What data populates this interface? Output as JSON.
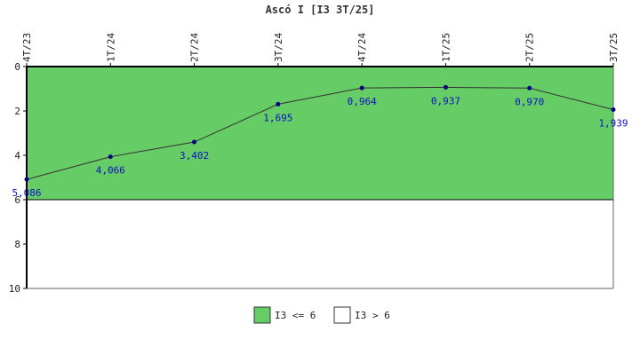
{
  "chart_data": {
    "type": "line",
    "title": "Ascó I [I3 3T/25]",
    "categories": [
      "4T/23",
      "1T/24",
      "2T/24",
      "3T/24",
      "4T/24",
      "1T/25",
      "2T/25",
      "3T/25"
    ],
    "series": [
      {
        "values": [
          5.086,
          4.066,
          3.402,
          1.695,
          0.964,
          0.937,
          0.97,
          1.939
        ],
        "labels": [
          "5,086",
          "4,066",
          "3,402",
          "1,695",
          "0,964",
          "0,937",
          "0,970",
          "1,939"
        ],
        "color": "#000080",
        "line_color": "#333333"
      }
    ],
    "y_axis": {
      "min": 0,
      "max": 10,
      "inverted": true,
      "ticks": [
        "0",
        "2",
        "4",
        "6",
        "8",
        "10"
      ],
      "tick_values": [
        0,
        2,
        4,
        6,
        8,
        10
      ]
    },
    "bands": [
      {
        "from": 0,
        "to": 6,
        "color": "#66cc66",
        "label": "I3 <= 6"
      },
      {
        "from": 6,
        "to": 10,
        "color": "#ffffff",
        "label": "I3 > 6"
      }
    ],
    "legend_position": "bottom"
  }
}
